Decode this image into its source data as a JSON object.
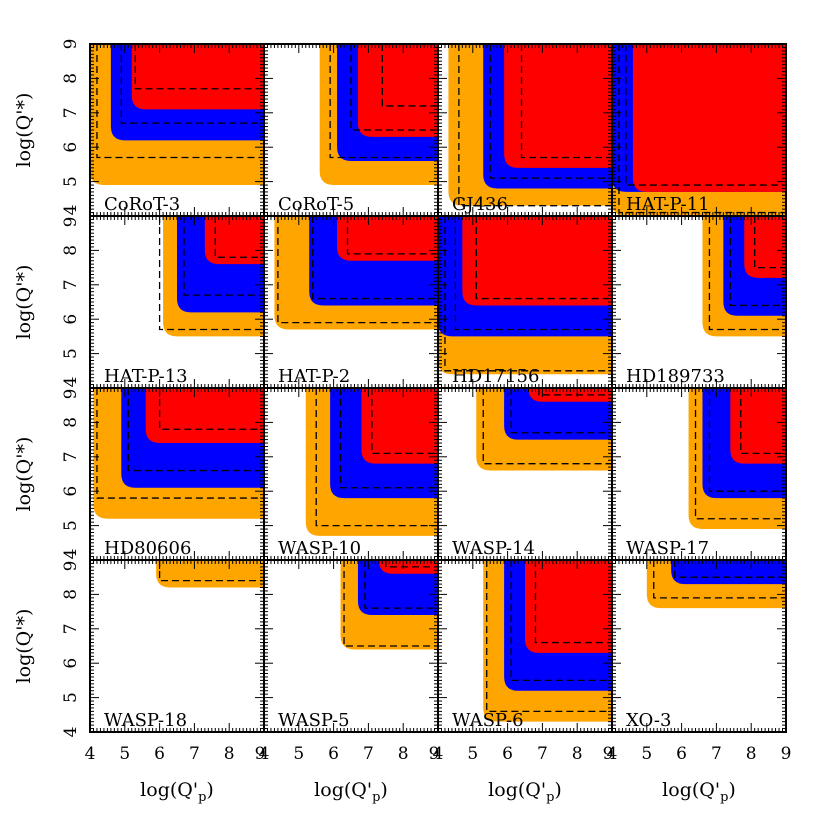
{
  "colors": {
    "outer": "#ffa500",
    "middle": "#0000ff",
    "inner": "#ff0000",
    "contour": "#000000"
  },
  "chart_data": {
    "type": "grid-of-contour-plots",
    "rows": 4,
    "cols": 4,
    "xlabel": "log(Q'p)",
    "ylabel": "log(Q'*)",
    "xlim": [
      4,
      9
    ],
    "ylim": [
      4,
      9
    ],
    "x_ticks": [
      "4",
      "5",
      "6",
      "7",
      "8",
      "9"
    ],
    "y_ticks": [
      "4",
      "5",
      "6",
      "7",
      "8",
      "9"
    ],
    "panels": [
      {
        "name": "CoRoT-3",
        "regions": {
          "outer": [
            4,
            4.9
          ],
          "middle": [
            4.6,
            6.2
          ],
          "inner": [
            5.2,
            7.1
          ]
        },
        "contours": [
          [
            4.2,
            5.7
          ],
          [
            4.9,
            6.7
          ],
          [
            5.3,
            7.7
          ]
        ]
      },
      {
        "name": "CoRoT-5",
        "regions": {
          "outer": [
            5.6,
            4.9
          ],
          "middle": [
            6.1,
            5.6
          ],
          "inner": [
            6.7,
            6.3
          ]
        },
        "contours": [
          [
            5.9,
            5.7
          ],
          [
            6.5,
            6.5
          ],
          [
            7.4,
            7.2
          ]
        ]
      },
      {
        "name": "GJ436",
        "regions": {
          "outer": [
            4.3,
            4.3
          ],
          "middle": [
            5.3,
            4.8
          ],
          "inner": [
            5.9,
            5.4
          ]
        },
        "contours": [
          [
            4.6,
            4.3
          ],
          [
            5.5,
            5.1
          ],
          [
            6.4,
            5.7
          ]
        ]
      },
      {
        "name": "HAT-P-11",
        "regions": {
          "outer": [
            4,
            4.0
          ],
          "middle": [
            4,
            4.7
          ],
          "inner": [
            4.6,
            4.7
          ]
        },
        "contours": [
          [
            4.2,
            4.1
          ],
          [
            4.4,
            4.9
          ]
        ]
      },
      {
        "name": "HAT-P-13",
        "regions": {
          "outer": [
            6.1,
            5.5
          ],
          "middle": [
            6.5,
            6.2
          ],
          "inner": [
            7.3,
            7.6
          ]
        },
        "contours": [
          [
            6.0,
            5.7
          ],
          [
            6.7,
            6.7
          ],
          [
            7.6,
            7.8
          ]
        ]
      },
      {
        "name": "HAT-P-2",
        "regions": {
          "outer": [
            4.3,
            5.7
          ],
          "middle": [
            5.3,
            6.4
          ],
          "inner": [
            6.1,
            7.7
          ]
        },
        "contours": [
          [
            4.4,
            5.9
          ],
          [
            5.4,
            6.6
          ],
          [
            6.4,
            7.9
          ]
        ]
      },
      {
        "name": "HD17156",
        "regions": {
          "outer": [
            4,
            4.4
          ],
          "middle": [
            4,
            5.5
          ],
          "inner": [
            4.7,
            6.4
          ]
        },
        "contours": [
          [
            4.2,
            4.5
          ],
          [
            4.5,
            5.7
          ],
          [
            5.1,
            6.6
          ]
        ]
      },
      {
        "name": "HD189733",
        "regions": {
          "outer": [
            6.6,
            5.5
          ],
          "middle": [
            7.2,
            6.1
          ],
          "inner": [
            7.8,
            7.2
          ]
        },
        "contours": [
          [
            6.8,
            5.7
          ],
          [
            7.4,
            6.4
          ],
          [
            8.1,
            7.5
          ]
        ]
      },
      {
        "name": "HD80606",
        "regions": {
          "outer": [
            4.1,
            5.2
          ],
          "middle": [
            4.9,
            6.1
          ],
          "inner": [
            5.6,
            7.4
          ]
        },
        "contours": [
          [
            4.2,
            5.8
          ],
          [
            5.1,
            6.6
          ],
          [
            6.0,
            7.8
          ]
        ]
      },
      {
        "name": "WASP-10",
        "regions": {
          "outer": [
            5.2,
            4.7
          ],
          "middle": [
            5.9,
            5.8
          ],
          "inner": [
            6.8,
            6.8
          ]
        },
        "contours": [
          [
            5.5,
            5.0
          ],
          [
            6.2,
            6.1
          ],
          [
            7.1,
            7.1
          ]
        ]
      },
      {
        "name": "WASP-14",
        "regions": {
          "outer": [
            5.1,
            6.6
          ],
          "middle": [
            5.9,
            7.5
          ],
          "inner": [
            6.6,
            8.6
          ]
        },
        "contours": [
          [
            5.3,
            6.8
          ],
          [
            6.1,
            7.7
          ],
          [
            6.9,
            8.8
          ]
        ]
      },
      {
        "name": "WASP-17",
        "regions": {
          "outer": [
            6.2,
            4.9
          ],
          "middle": [
            6.6,
            5.8
          ],
          "inner": [
            7.4,
            6.8
          ]
        },
        "contours": [
          [
            6.4,
            5.2
          ],
          [
            6.8,
            6.0
          ],
          [
            7.7,
            7.1
          ]
        ]
      },
      {
        "name": "WASP-18",
        "regions": {
          "outer": [
            5.9,
            8.2
          ],
          "middle": null,
          "inner": null
        },
        "contours": [
          [
            6.0,
            8.4
          ]
        ]
      },
      {
        "name": "WASP-5",
        "regions": {
          "outer": [
            6.2,
            6.4
          ],
          "middle": [
            6.7,
            7.4
          ],
          "inner": [
            7.3,
            8.6
          ]
        },
        "contours": [
          [
            6.3,
            6.5
          ],
          [
            6.9,
            7.6
          ],
          [
            7.5,
            8.8
          ]
        ]
      },
      {
        "name": "WASP-6",
        "regions": {
          "outer": [
            5.3,
            4.3
          ],
          "middle": [
            5.9,
            5.2
          ],
          "inner": [
            6.5,
            6.3
          ]
        },
        "contours": [
          [
            5.4,
            4.6
          ],
          [
            6.1,
            5.5
          ],
          [
            6.8,
            6.6
          ]
        ]
      },
      {
        "name": "XO-3",
        "regions": {
          "outer": [
            5.0,
            7.6
          ],
          "middle": [
            5.7,
            8.3
          ],
          "inner": null
        },
        "contours": [
          [
            5.2,
            7.9
          ],
          [
            5.8,
            8.5
          ]
        ]
      }
    ]
  }
}
